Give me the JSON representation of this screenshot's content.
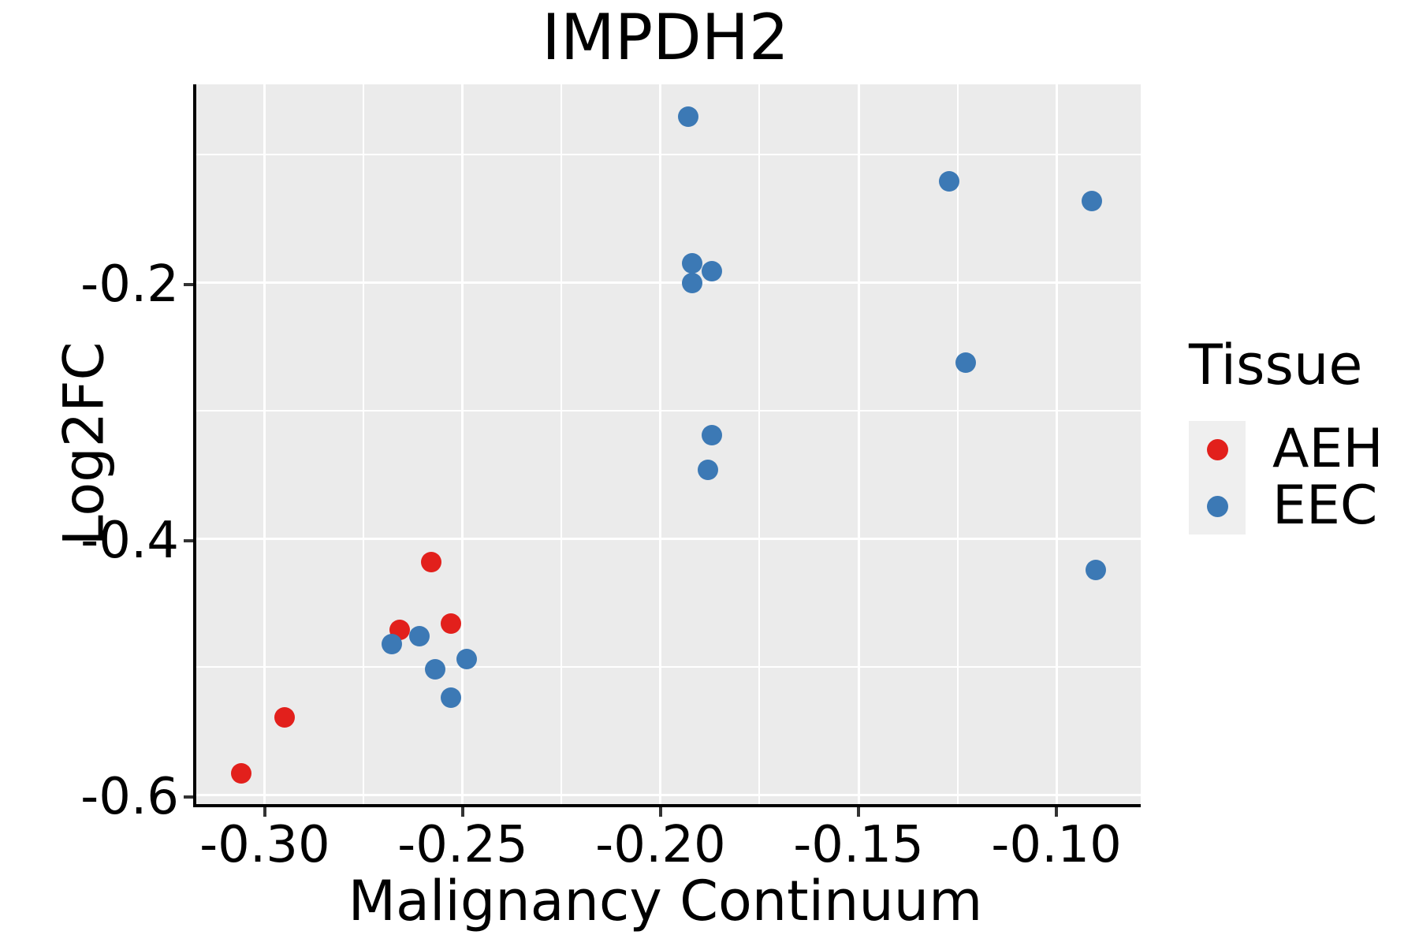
{
  "chart_data": {
    "type": "scatter",
    "title": "IMPDH2",
    "xlabel": "Malignancy Continuum",
    "ylabel": "Log2FC",
    "xlim": [
      -0.3173,
      -0.0787
    ],
    "ylim": [
      -0.607,
      -0.045
    ],
    "grid": "major and minor white gridlines on gray panel",
    "x_ticks": {
      "values": [
        -0.3,
        -0.25,
        -0.2,
        -0.15,
        -0.1
      ],
      "labels": [
        "-0.30",
        "-0.25",
        "-0.20",
        "-0.15",
        "-0.10"
      ]
    },
    "y_ticks": {
      "values": [
        -0.2,
        -0.4,
        -0.6
      ],
      "labels": [
        "-0.2",
        "-0.4",
        "-0.6"
      ]
    },
    "x_minor_ticks": [
      -0.275,
      -0.225,
      -0.175,
      -0.125
    ],
    "y_minor_ticks": [
      -0.1,
      -0.3,
      -0.5
    ],
    "legend": {
      "title": "Tissue",
      "position": "right",
      "entries": [
        {
          "label": "AEH",
          "color": "#E2201C"
        },
        {
          "label": "EEC",
          "color": "#3C79B5"
        }
      ]
    },
    "series": [
      {
        "name": "AEH",
        "color": "#E2201C",
        "points": [
          [
            -0.306,
            -0.583
          ],
          [
            -0.295,
            -0.539
          ],
          [
            -0.266,
            -0.471
          ],
          [
            -0.258,
            -0.418
          ],
          [
            -0.253,
            -0.466
          ]
        ]
      },
      {
        "name": "EEC",
        "color": "#3C79B5",
        "points": [
          [
            -0.193,
            -0.07
          ],
          [
            -0.127,
            -0.121
          ],
          [
            -0.091,
            -0.136
          ],
          [
            -0.192,
            -0.185
          ],
          [
            -0.187,
            -0.191
          ],
          [
            -0.192,
            -0.2
          ],
          [
            -0.123,
            -0.262
          ],
          [
            -0.187,
            -0.319
          ],
          [
            -0.188,
            -0.346
          ],
          [
            -0.09,
            -0.424
          ],
          [
            -0.268,
            -0.482
          ],
          [
            -0.261,
            -0.476
          ],
          [
            -0.257,
            -0.502
          ],
          [
            -0.249,
            -0.494
          ],
          [
            -0.253,
            -0.524
          ]
        ]
      }
    ]
  },
  "colors": {
    "panel_background": "#EBEBEB",
    "gridline": "#FFFFFF",
    "axis_line": "#000000",
    "tick_mark": "#333333",
    "text": "#000000",
    "legend_key_background": "#EFEFEF",
    "aeh_red": "#E2201C",
    "eec_blue": "#3C79B5"
  }
}
